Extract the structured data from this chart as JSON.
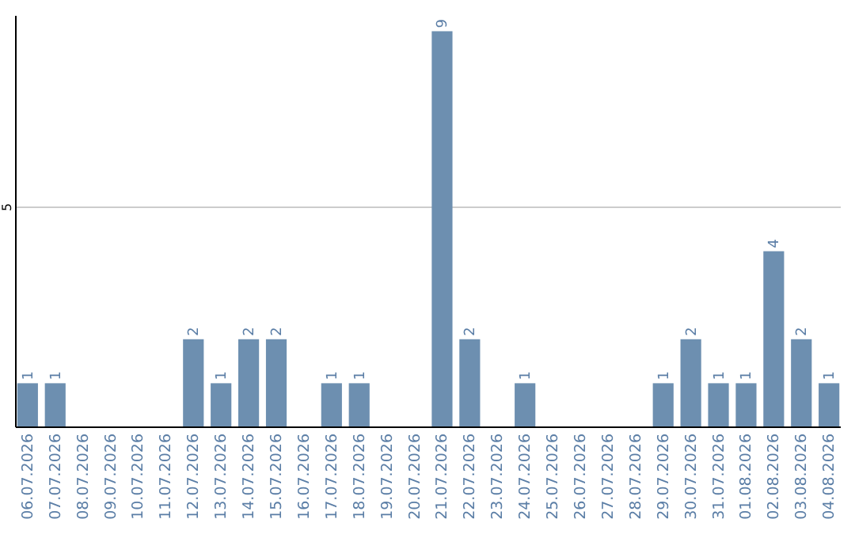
{
  "chart_data": {
    "type": "bar",
    "categories": [
      "06.07.2026",
      "07.07.2026",
      "08.07.2026",
      "09.07.2026",
      "10.07.2026",
      "11.07.2026",
      "12.07.2026",
      "13.07.2026",
      "14.07.2026",
      "15.07.2026",
      "16.07.2026",
      "17.07.2026",
      "18.07.2026",
      "19.07.2026",
      "20.07.2026",
      "21.07.2026",
      "22.07.2026",
      "23.07.2026",
      "24.07.2026",
      "25.07.2026",
      "26.07.2026",
      "27.07.2026",
      "28.07.2026",
      "29.07.2026",
      "30.07.2026",
      "31.07.2026",
      "01.08.2026",
      "02.08.2026",
      "03.08.2026",
      "04.08.2026"
    ],
    "values": [
      1,
      1,
      0,
      0,
      0,
      0,
      2,
      1,
      2,
      2,
      0,
      1,
      1,
      0,
      0,
      9,
      2,
      0,
      1,
      0,
      0,
      0,
      0,
      1,
      2,
      1,
      1,
      4,
      2,
      1
    ],
    "value_labels": [
      "1",
      "1",
      null,
      null,
      null,
      null,
      "2",
      "1",
      "2",
      "2",
      null,
      "1",
      "1",
      null,
      null,
      "9",
      "2",
      null,
      "1",
      null,
      null,
      null,
      null,
      "1",
      "2",
      "1",
      "1",
      "4",
      "2",
      "1"
    ],
    "color": "#6d8fb0",
    "ylim": [
      0,
      9.35
    ],
    "yticks": [
      5
    ],
    "grid": "y"
  }
}
